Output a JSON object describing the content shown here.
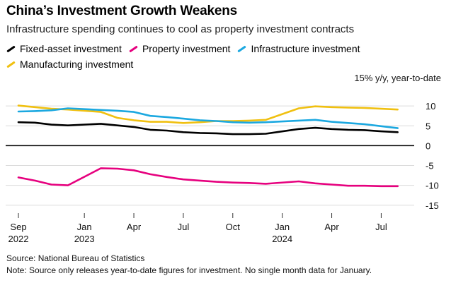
{
  "header": {
    "title": "China’s Investment Growth Weakens",
    "subtitle": "Infrastructure spending continues to cool as property investment contracts"
  },
  "footer": {
    "source": "Source: National Bureau of Statistics",
    "note": "Note: Source only releases year-to-date figures for investment. No single month data for January."
  },
  "chart_data": {
    "type": "line",
    "unit_label": "15% y/y, year-to-date",
    "x": [
      "2022-09",
      "2022-10",
      "2022-11",
      "2022-12",
      "2023-02",
      "2023-03",
      "2023-04",
      "2023-05",
      "2023-06",
      "2023-07",
      "2023-08",
      "2023-09",
      "2023-10",
      "2023-11",
      "2023-12",
      "2024-02",
      "2024-03",
      "2024-04",
      "2024-05",
      "2024-06",
      "2024-07",
      "2024-08"
    ],
    "x_ticks": [
      {
        "x": "2022-09",
        "label": "Sep",
        "sub": "2022"
      },
      {
        "x": "2023-01",
        "label": "Jan",
        "sub": "2023"
      },
      {
        "x": "2023-04",
        "label": "Apr",
        "sub": ""
      },
      {
        "x": "2023-07",
        "label": "Jul",
        "sub": ""
      },
      {
        "x": "2023-10",
        "label": "Oct",
        "sub": ""
      },
      {
        "x": "2024-01",
        "label": "Jan",
        "sub": "2024"
      },
      {
        "x": "2024-04",
        "label": "Apr",
        "sub": ""
      },
      {
        "x": "2024-07",
        "label": "Jul",
        "sub": ""
      }
    ],
    "y_ticks": [
      10,
      5,
      0,
      -5,
      -10,
      -15
    ],
    "y_tick_labels": [
      "10",
      "5",
      "0",
      "-5",
      "-10",
      "-15"
    ],
    "ylim": [
      -17,
      15
    ],
    "xlim": [
      "2022-09",
      "2024-09"
    ],
    "grid": true,
    "legend_position": "top-left",
    "series": [
      {
        "name": "Fixed-asset investment",
        "color": "#000000",
        "values": [
          5.9,
          5.8,
          5.3,
          5.1,
          5.5,
          5.1,
          4.7,
          4.0,
          3.8,
          3.4,
          3.2,
          3.1,
          2.9,
          2.9,
          3.0,
          4.2,
          4.5,
          4.2,
          4.0,
          3.9,
          3.6,
          3.4
        ]
      },
      {
        "name": "Property investment",
        "color": "#e6007e",
        "values": [
          -8.0,
          -8.8,
          -9.8,
          -10.0,
          -5.7,
          -5.8,
          -6.2,
          -7.2,
          -7.9,
          -8.5,
          -8.8,
          -9.1,
          -9.3,
          -9.4,
          -9.6,
          -9.0,
          -9.5,
          -9.8,
          -10.1,
          -10.1,
          -10.2,
          -10.2
        ]
      },
      {
        "name": "Infrastructure investment",
        "color": "#1ba8e0",
        "values": [
          8.6,
          8.7,
          8.9,
          9.4,
          9.0,
          8.8,
          8.5,
          7.5,
          7.2,
          6.8,
          6.4,
          6.2,
          5.9,
          5.8,
          5.9,
          6.3,
          6.5,
          6.0,
          5.7,
          5.4,
          4.9,
          4.4
        ]
      },
      {
        "name": "Manufacturing investment",
        "color": "#f0c010",
        "values": [
          10.1,
          9.7,
          9.3,
          9.1,
          8.5,
          7.0,
          6.4,
          6.0,
          6.0,
          5.7,
          5.9,
          6.2,
          6.2,
          6.3,
          6.5,
          9.4,
          9.9,
          9.7,
          9.6,
          9.5,
          9.3,
          9.1
        ]
      }
    ]
  }
}
